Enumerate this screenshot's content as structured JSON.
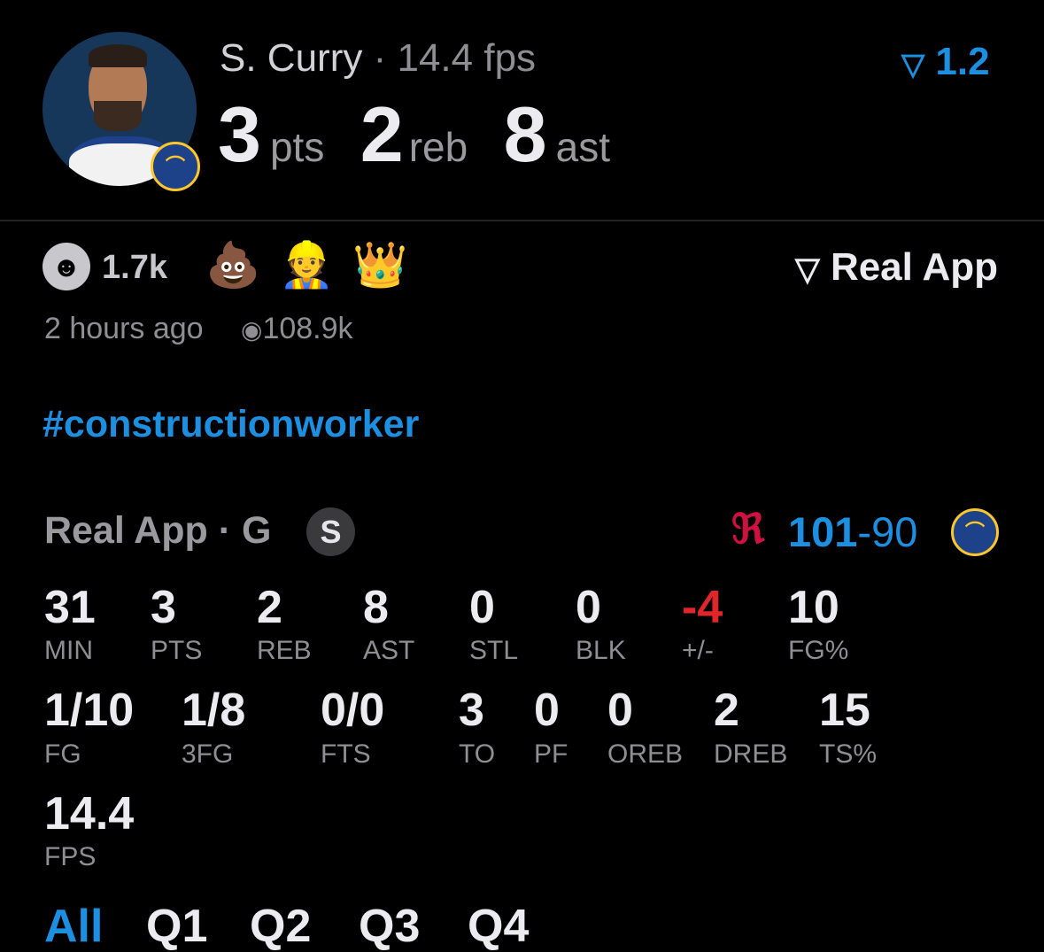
{
  "header": {
    "player_name": "S. Curry",
    "separator": "·",
    "fps_text": "14.4 fps",
    "rating": "1.2",
    "stats": [
      {
        "value": "3",
        "unit": "pts"
      },
      {
        "value": "2",
        "unit": "reb"
      },
      {
        "value": "8",
        "unit": "ast"
      }
    ]
  },
  "post": {
    "reaction_count": "1.7k",
    "emojis": [
      "💩",
      "👷",
      "👑"
    ],
    "brand": "Real App",
    "time_ago": "2 hours ago",
    "views": "108.9k",
    "hashtag": "#constructionworker"
  },
  "game": {
    "source": "Real App · G",
    "badge": "S",
    "score_home": "101",
    "score_dash": "-",
    "score_away": "90",
    "row1": [
      {
        "value": "31",
        "label": "MIN"
      },
      {
        "value": "3",
        "label": "PTS"
      },
      {
        "value": "2",
        "label": "REB"
      },
      {
        "value": "8",
        "label": "AST"
      },
      {
        "value": "0",
        "label": "STL"
      },
      {
        "value": "0",
        "label": "BLK"
      },
      {
        "value": "-4",
        "label": "+/-"
      },
      {
        "value": "10",
        "label": "FG%"
      }
    ],
    "row2": [
      {
        "value": "1/10",
        "label": "FG"
      },
      {
        "value": "1/8",
        "label": "3FG"
      },
      {
        "value": "0/0",
        "label": "FTS"
      },
      {
        "value": "3",
        "label": "TO"
      },
      {
        "value": "0",
        "label": "PF"
      },
      {
        "value": "0",
        "label": "OREB"
      },
      {
        "value": "2",
        "label": "DREB"
      },
      {
        "value": "15",
        "label": "TS%"
      }
    ],
    "row3": [
      {
        "value": "14.4",
        "label": "FPS"
      }
    ],
    "tabs": [
      "All",
      "Q1",
      "Q2",
      "Q3",
      "Q4"
    ],
    "active_tab": "All"
  },
  "colors": {
    "accent": "#1d8fe0",
    "negative": "#e0262b",
    "background": "#000000",
    "rockets": "#ce1141",
    "warriors": "#1d428a"
  }
}
